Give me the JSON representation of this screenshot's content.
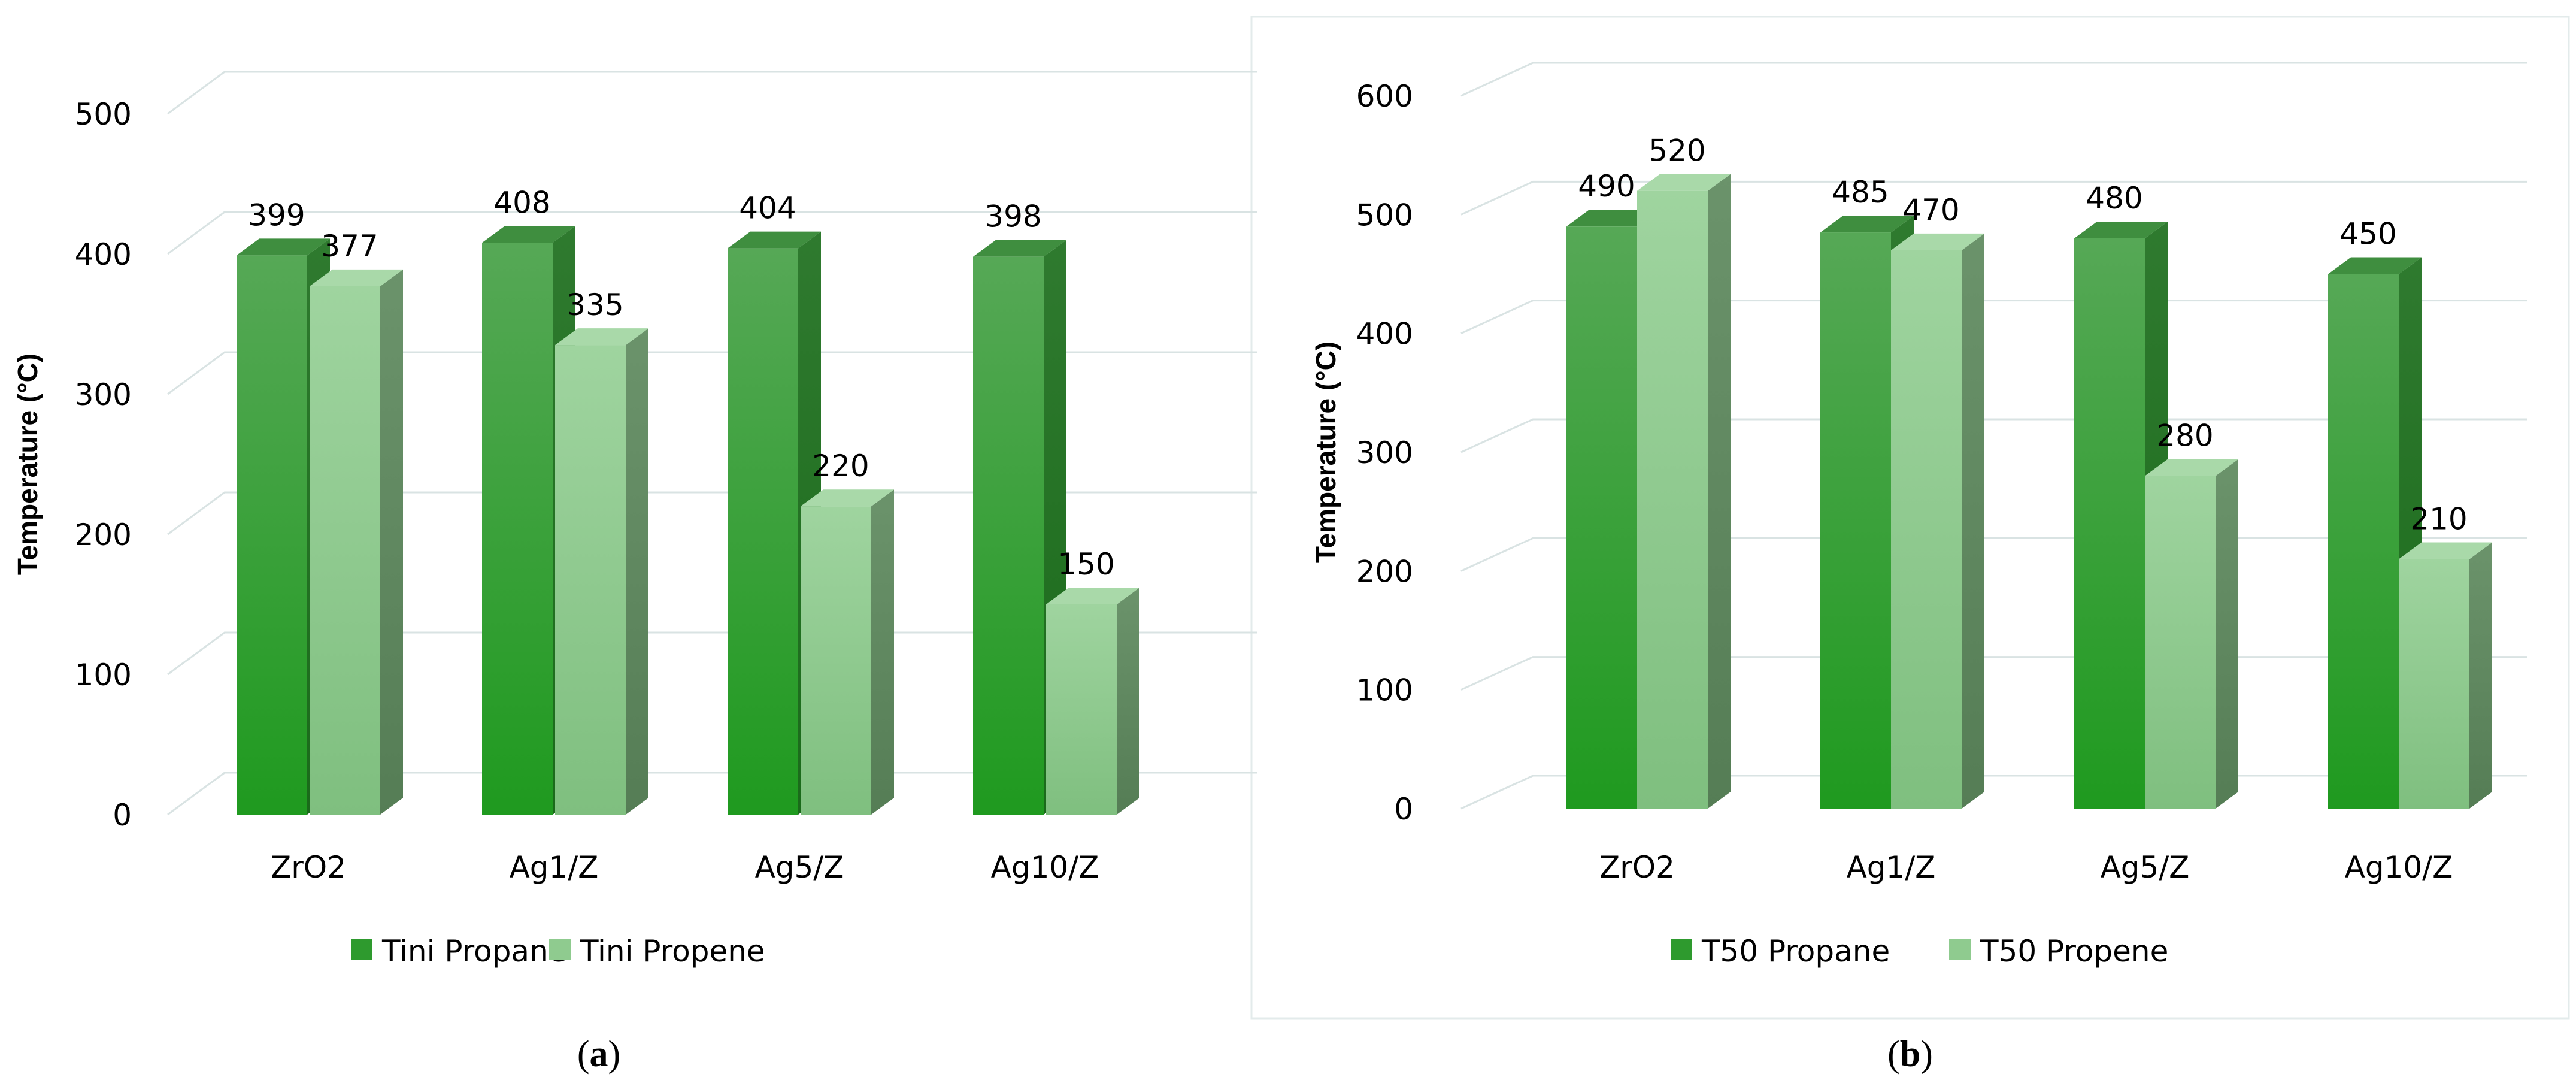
{
  "colors": {
    "series1_front": "#2e9a2e",
    "series1_front_top": "#4aa84a",
    "series1_side": "#1f6f1f",
    "series1_top": "#3d8b3d",
    "series2_front": "#8fcb8f",
    "series2_side": "#5f8f5f",
    "series2_top": "#a7d7a7",
    "gridline": "#d9e3e3",
    "border": "#e3ebeb"
  },
  "chart_data": [
    {
      "panel": "(a)",
      "panel_letter": "a",
      "type": "bar",
      "style": "3d-clustered-column",
      "title": "",
      "xlabel": "",
      "ylabel": "Temperature (°C)",
      "ylim": [
        0,
        500
      ],
      "yticks": [
        0,
        100,
        200,
        300,
        400,
        500
      ],
      "categories": [
        "ZrO2",
        "Ag1/Z",
        "Ag5/Z",
        "Ag10/Z"
      ],
      "series": [
        {
          "name": "Tini Propane",
          "values": [
            399,
            408,
            404,
            398
          ]
        },
        {
          "name": "Tini Propene",
          "values": [
            377,
            335,
            220,
            150
          ]
        }
      ],
      "legend_position": "bottom"
    },
    {
      "panel": "(b)",
      "panel_letter": "b",
      "type": "bar",
      "style": "3d-clustered-column",
      "title": "",
      "xlabel": "",
      "ylabel": "Temperature (°C)",
      "ylim": [
        0,
        600
      ],
      "yticks": [
        0,
        100,
        200,
        300,
        400,
        500,
        600
      ],
      "categories": [
        "ZrO2",
        "Ag1/Z",
        "Ag5/Z",
        "Ag10/Z"
      ],
      "series": [
        {
          "name": "T50 Propane",
          "values": [
            490,
            485,
            480,
            450
          ]
        },
        {
          "name": "T50 Propene",
          "values": [
            520,
            470,
            280,
            210
          ]
        }
      ],
      "legend_position": "bottom"
    }
  ]
}
